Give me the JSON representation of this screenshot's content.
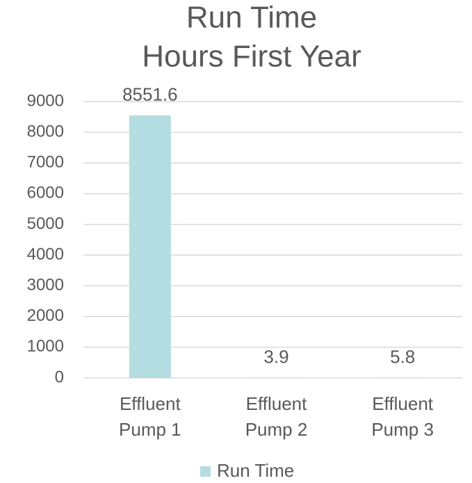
{
  "chart_data": {
    "type": "bar",
    "title": [
      "Run Time",
      "Hours First Year"
    ],
    "categories": [
      "Effluent Pump 1",
      "Effluent Pump 2",
      "Effluent Pump 3"
    ],
    "series": [
      {
        "name": "Run Time",
        "color": "#b4dde1",
        "values": [
          8551.6,
          3.9,
          5.8
        ]
      }
    ],
    "ylim": [
      0,
      9000
    ],
    "yticks": [
      0,
      1000,
      2000,
      3000,
      4000,
      5000,
      6000,
      7000,
      8000,
      9000
    ],
    "grid": true,
    "legend": "bottom"
  }
}
